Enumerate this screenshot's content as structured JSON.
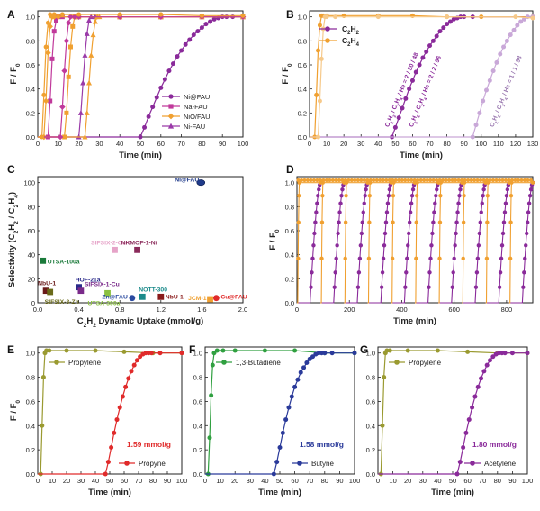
{
  "figure_title": "",
  "chart_data": [
    {
      "panel": "A",
      "type": "line",
      "xlabel": "Time (min)",
      "ylabel": "F / F0",
      "xlim": [
        0,
        100
      ],
      "ylim": [
        0,
        1.05
      ],
      "xticks": [
        0,
        10,
        20,
        30,
        40,
        50,
        60,
        70,
        80,
        90,
        100
      ],
      "yticks": [
        0.0,
        0.2,
        0.4,
        0.6,
        0.8,
        1.0
      ],
      "legend": "right",
      "series": [
        {
          "name": "Ni@FAU",
          "color": "#8a2a9a",
          "marker": "circle",
          "x": [
            0,
            50,
            52,
            54,
            56,
            58,
            60,
            62,
            64,
            66,
            68,
            70,
            72,
            74,
            76,
            78,
            80,
            82,
            84,
            86,
            88,
            90,
            92,
            95,
            100
          ],
          "y": [
            0,
            0,
            0.08,
            0.17,
            0.25,
            0.33,
            0.41,
            0.48,
            0.55,
            0.61,
            0.67,
            0.72,
            0.77,
            0.81,
            0.85,
            0.88,
            0.91,
            0.94,
            0.96,
            0.98,
            0.99,
            1.0,
            1.0,
            1.0,
            1.0
          ]
        },
        {
          "name": "Na-FAU",
          "color": "#c0399b",
          "marker": "square",
          "x": [
            0,
            5,
            6,
            7,
            8,
            9,
            10,
            12,
            20,
            40,
            60,
            80,
            100
          ],
          "y": [
            0,
            0,
            0.3,
            0.65,
            0.88,
            0.97,
            1.0,
            1.0,
            1.0,
            1.0,
            1.0,
            1.0,
            1.0
          ]
        },
        {
          "name": "NiO/FAU",
          "color": "#f0a030",
          "marker": "diamond",
          "x": [
            0,
            3,
            4,
            5,
            6,
            7,
            8,
            10,
            20,
            40,
            60,
            80,
            100
          ],
          "y": [
            0,
            0,
            0.3,
            0.7,
            0.92,
            1.0,
            1.0,
            1.0,
            1.0,
            1.0,
            1.0,
            1.0,
            1.0
          ]
        },
        {
          "name": "Ni-FAU",
          "color": "#9a3aa8",
          "marker": "triangle",
          "x": [
            0,
            20,
            21,
            22,
            23,
            24,
            25,
            26,
            28,
            40,
            60,
            80,
            100
          ],
          "y": [
            0,
            0,
            0.2,
            0.45,
            0.68,
            0.86,
            0.97,
            1.0,
            1.0,
            1.0,
            1.0,
            1.0,
            1.0
          ]
        },
        {
          "name": "",
          "color": "#f0a030",
          "marker": "triangle",
          "x": [
            0,
            23,
            24,
            25,
            26,
            27,
            28,
            29,
            30,
            40,
            60,
            80,
            100
          ],
          "y": [
            0,
            0,
            0.2,
            0.45,
            0.68,
            0.85,
            0.96,
            1.0,
            1.0,
            1.0,
            1.0,
            1.0,
            1.0
          ]
        },
        {
          "name": "",
          "color": "#f0a030",
          "marker": "square",
          "x": [
            0,
            13,
            14,
            15,
            16,
            17,
            18,
            19,
            20,
            40,
            60,
            80,
            100
          ],
          "y": [
            0,
            0,
            0.2,
            0.5,
            0.75,
            0.92,
            1.0,
            1.0,
            1.0,
            1.0,
            1.0,
            1.0,
            1.0
          ]
        },
        {
          "name": "",
          "color": "#c0399b",
          "marker": "diamond",
          "x": [
            0,
            11,
            12,
            13,
            14,
            15,
            16,
            18,
            20,
            40,
            60,
            80,
            100
          ],
          "y": [
            0,
            0,
            0.25,
            0.55,
            0.8,
            0.95,
            1.0,
            1.0,
            1.0,
            1.0,
            1.0,
            1.0,
            1.0
          ]
        },
        {
          "name": "",
          "color": "#f0a030",
          "marker": "circle",
          "x": [
            0,
            2,
            3,
            4,
            5,
            6,
            8,
            12,
            20,
            40,
            60,
            80,
            100
          ],
          "y": [
            0,
            0,
            0.35,
            0.75,
            0.95,
            1.02,
            1.02,
            1.02,
            1.02,
            1.02,
            1.02,
            1.01,
            1.01
          ]
        }
      ]
    },
    {
      "panel": "B",
      "type": "line",
      "xlabel": "Time (min)",
      "ylabel": "F / F0",
      "xlim": [
        0,
        130
      ],
      "ylim": [
        0,
        1.05
      ],
      "xticks": [
        0,
        10,
        20,
        30,
        40,
        50,
        60,
        70,
        80,
        90,
        100,
        110,
        120,
        130
      ],
      "yticks": [
        0.0,
        0.2,
        0.4,
        0.6,
        0.8,
        1.0
      ],
      "legend": "top-left",
      "annotations": [
        "C2H2 / C2H4 / He = 2 / 50 / 48",
        "C2H2 / C2H4 / He = 2 / 2 / 96",
        "C2H2 / C2H4 / He = 1 / 1 / 98"
      ],
      "series": [
        {
          "name": "C2H2",
          "color": "#8a2a9a",
          "marker": "circle",
          "x": [
            0,
            48,
            50,
            52,
            54,
            56,
            58,
            60,
            62,
            64,
            66,
            68,
            70,
            72,
            74,
            76,
            78,
            80,
            82,
            84,
            86,
            88,
            90,
            95,
            130
          ],
          "y": [
            0,
            0,
            0.08,
            0.16,
            0.24,
            0.32,
            0.4,
            0.47,
            0.54,
            0.6,
            0.66,
            0.71,
            0.76,
            0.8,
            0.84,
            0.88,
            0.91,
            0.94,
            0.96,
            0.98,
            0.99,
            1.0,
            1.0,
            1.0,
            1.0
          ]
        },
        {
          "name": "C2H4",
          "color": "#f0a030",
          "marker": "circle",
          "x": [
            0,
            3,
            4,
            5,
            6,
            7,
            8,
            10,
            20,
            40,
            60,
            80,
            100,
            130
          ],
          "y": [
            0,
            0,
            0.35,
            0.72,
            0.93,
            1.01,
            1.01,
            1.01,
            1.01,
            1.01,
            1.01,
            1.0,
            1.0,
            1.0
          ]
        },
        {
          "name": "",
          "color": "#c9a8d8",
          "marker": "circle",
          "x": [
            0,
            95,
            97,
            99,
            101,
            103,
            105,
            107,
            109,
            111,
            113,
            115,
            117,
            119,
            121,
            123,
            125,
            127,
            130
          ],
          "y": [
            0,
            0,
            0.1,
            0.2,
            0.3,
            0.39,
            0.47,
            0.55,
            0.62,
            0.69,
            0.75,
            0.8,
            0.85,
            0.89,
            0.93,
            0.96,
            0.98,
            1.0,
            1.0
          ]
        },
        {
          "name": "",
          "color": "#f6c98a",
          "marker": "circle",
          "x": [
            0,
            5,
            6,
            7,
            8,
            9,
            10,
            15,
            40,
            80,
            120,
            130
          ],
          "y": [
            0,
            0,
            0.3,
            0.65,
            0.9,
            1.0,
            1.0,
            1.0,
            1.0,
            1.0,
            1.0,
            0.99
          ]
        }
      ]
    },
    {
      "panel": "C",
      "type": "scatter",
      "xlabel": "C2H2 Dynamic Uptake (mmol/g)",
      "ylabel": "Selectivity (C2H2 / C2H4)",
      "xlim": [
        0,
        2.0
      ],
      "ylim": [
        0,
        105
      ],
      "xticks": [
        0.0,
        0.4,
        0.8,
        1.2,
        1.6,
        2.0
      ],
      "yticks": [
        0,
        20,
        40,
        60,
        80,
        100
      ],
      "points": [
        {
          "label": "Ni@FAU",
          "x": 1.59,
          "y": 100,
          "color": "#1f3a8a",
          "shape": "ellipse"
        },
        {
          "label": "SIFSIX-2-Cu-i",
          "x": 0.75,
          "y": 44,
          "color": "#e6a3c8",
          "shape": "square"
        },
        {
          "label": "NKMOF-1-Ni",
          "x": 0.97,
          "y": 44,
          "color": "#8a2a5a",
          "shape": "square"
        },
        {
          "label": "UTSA-100a",
          "x": 0.05,
          "y": 35,
          "color": "#1a7a3a",
          "shape": "square"
        },
        {
          "label": "HOF-21a",
          "x": 0.4,
          "y": 13,
          "color": "#2a2a8a",
          "shape": "square"
        },
        {
          "label": "SIFSIX-1-Cu",
          "x": 0.42,
          "y": 10,
          "color": "#7a2a8a",
          "shape": "square"
        },
        {
          "label": "NbU-1",
          "x": 0.08,
          "y": 10,
          "color": "#6a1a1a",
          "shape": "square"
        },
        {
          "label": "SIFSIX-3-Zn",
          "x": 0.12,
          "y": 9,
          "color": "#6a6a1a",
          "shape": "square"
        },
        {
          "label": "UTSA-300a",
          "x": 0.68,
          "y": 8,
          "color": "#8ac040",
          "shape": "square"
        },
        {
          "label": "NOTT-300",
          "x": 1.02,
          "y": 5,
          "color": "#1a8a8a",
          "shape": "square"
        },
        {
          "label": "Zn@FAU",
          "x": 0.92,
          "y": 4,
          "color": "#2a4aa0",
          "shape": "circle"
        },
        {
          "label": "NbU-1",
          "x": 1.2,
          "y": 5,
          "color": "#8a1a1a",
          "shape": "square"
        },
        {
          "label": "JCM-1",
          "x": 1.68,
          "y": 3,
          "color": "#f0a030",
          "shape": "square"
        },
        {
          "label": "Cu@FAU",
          "x": 1.74,
          "y": 4,
          "color": "#e02a2a",
          "shape": "circle"
        }
      ]
    },
    {
      "panel": "D",
      "type": "line",
      "xlabel": "Time (min)",
      "ylabel": "F / F0",
      "xlim": [
        0,
        900
      ],
      "ylim": [
        0,
        1.05
      ],
      "xticks": [
        0,
        200,
        400,
        600,
        800
      ],
      "yticks": [
        0.0,
        0.2,
        0.4,
        0.6,
        0.8,
        1.0
      ],
      "cycle_starts": [
        0,
        90,
        180,
        270,
        360,
        450,
        540,
        630,
        720,
        810
      ],
      "series": [
        {
          "name": "",
          "color": "#8a2a9a",
          "marker": "circle",
          "breakthrough_offset_min": 50,
          "rise_duration_min": 40
        },
        {
          "name": "",
          "color": "#f0a030",
          "marker": "circle",
          "breakthrough_offset_min": 3,
          "rise_duration_min": 6
        }
      ]
    },
    {
      "panel": "E",
      "type": "line",
      "xlabel": "Time (min)",
      "ylabel": "F / F0",
      "xlim": [
        0,
        100
      ],
      "ylim": [
        0,
        1.05
      ],
      "xticks": [
        0,
        10,
        20,
        30,
        40,
        50,
        60,
        70,
        80,
        90,
        100
      ],
      "yticks": [
        0.0,
        0.2,
        0.4,
        0.6,
        0.8,
        1.0
      ],
      "annotation": "1.59 mmol/g",
      "annotation_color": "#e02a2a",
      "series": [
        {
          "name": "Propylene",
          "color": "#9a9a30",
          "marker": "circle",
          "x": [
            0,
            2,
            3,
            4,
            5,
            6,
            8,
            20,
            40,
            60,
            80,
            100
          ],
          "y": [
            0,
            0,
            0.4,
            0.8,
            1.0,
            1.02,
            1.02,
            1.02,
            1.02,
            1.01,
            1.0,
            1.0
          ]
        },
        {
          "name": "Propyne",
          "color": "#e02a2a",
          "marker": "circle",
          "x": [
            0,
            47,
            49,
            51,
            53,
            55,
            57,
            59,
            61,
            63,
            65,
            67,
            69,
            71,
            73,
            75,
            77,
            79,
            85,
            100
          ],
          "y": [
            0,
            0,
            0.1,
            0.22,
            0.34,
            0.45,
            0.55,
            0.64,
            0.72,
            0.79,
            0.85,
            0.9,
            0.94,
            0.97,
            0.99,
            1.0,
            1.0,
            1.0,
            1.0,
            1.0
          ]
        }
      ]
    },
    {
      "panel": "F",
      "type": "line",
      "xlabel": "Time (min)",
      "ylabel": "",
      "xlim": [
        0,
        100
      ],
      "ylim": [
        0,
        1.05
      ],
      "xticks": [
        0,
        10,
        20,
        30,
        40,
        50,
        60,
        70,
        80,
        90,
        100
      ],
      "yticks": [
        0.0,
        0.2,
        0.4,
        0.6,
        0.8,
        1.0
      ],
      "annotation": "1.58 mmol/g",
      "annotation_color": "#2a3a9a",
      "series": [
        {
          "name": "1,3-Butadiene",
          "color": "#30a040",
          "marker": "circle",
          "x": [
            0,
            2,
            3,
            4,
            5,
            6,
            8,
            12,
            20,
            40,
            60,
            80,
            100
          ],
          "y": [
            0,
            0,
            0.3,
            0.65,
            0.9,
            1.0,
            1.02,
            1.02,
            1.02,
            1.02,
            1.02,
            1.0,
            1.0
          ]
        },
        {
          "name": "Butyne",
          "color": "#2a3a9a",
          "marker": "circle",
          "x": [
            0,
            46,
            48,
            50,
            52,
            54,
            56,
            58,
            60,
            62,
            64,
            66,
            68,
            70,
            72,
            74,
            76,
            78,
            80,
            85,
            100
          ],
          "y": [
            0,
            0,
            0.1,
            0.22,
            0.34,
            0.45,
            0.55,
            0.64,
            0.72,
            0.78,
            0.84,
            0.88,
            0.92,
            0.95,
            0.97,
            0.99,
            1.0,
            1.0,
            1.0,
            1.0,
            1.0
          ]
        }
      ]
    },
    {
      "panel": "G",
      "type": "line",
      "xlabel": "Time (min)",
      "ylabel": "",
      "xlim": [
        0,
        100
      ],
      "ylim": [
        0,
        1.05
      ],
      "xticks": [
        0,
        10,
        20,
        30,
        40,
        50,
        60,
        70,
        80,
        90,
        100
      ],
      "yticks": [
        0.0,
        0.2,
        0.4,
        0.6,
        0.8,
        1.0
      ],
      "annotation": "1.80 mmol/g",
      "annotation_color": "#8a2a9a",
      "series": [
        {
          "name": "Propylene",
          "color": "#9a9a30",
          "marker": "circle",
          "x": [
            0,
            2,
            3,
            4,
            5,
            6,
            8,
            20,
            40,
            60,
            80,
            100
          ],
          "y": [
            0,
            0,
            0.4,
            0.8,
            1.0,
            1.02,
            1.02,
            1.02,
            1.02,
            1.01,
            1.0,
            1.0
          ]
        },
        {
          "name": "Acetylene",
          "color": "#8a2a9a",
          "marker": "circle",
          "x": [
            0,
            53,
            55,
            57,
            59,
            61,
            63,
            65,
            67,
            69,
            71,
            73,
            75,
            77,
            79,
            81,
            83,
            85,
            90,
            100
          ],
          "y": [
            0,
            0,
            0.1,
            0.22,
            0.34,
            0.45,
            0.55,
            0.64,
            0.72,
            0.79,
            0.85,
            0.9,
            0.94,
            0.97,
            0.99,
            1.0,
            1.0,
            1.0,
            1.0,
            1.0
          ]
        }
      ]
    }
  ]
}
